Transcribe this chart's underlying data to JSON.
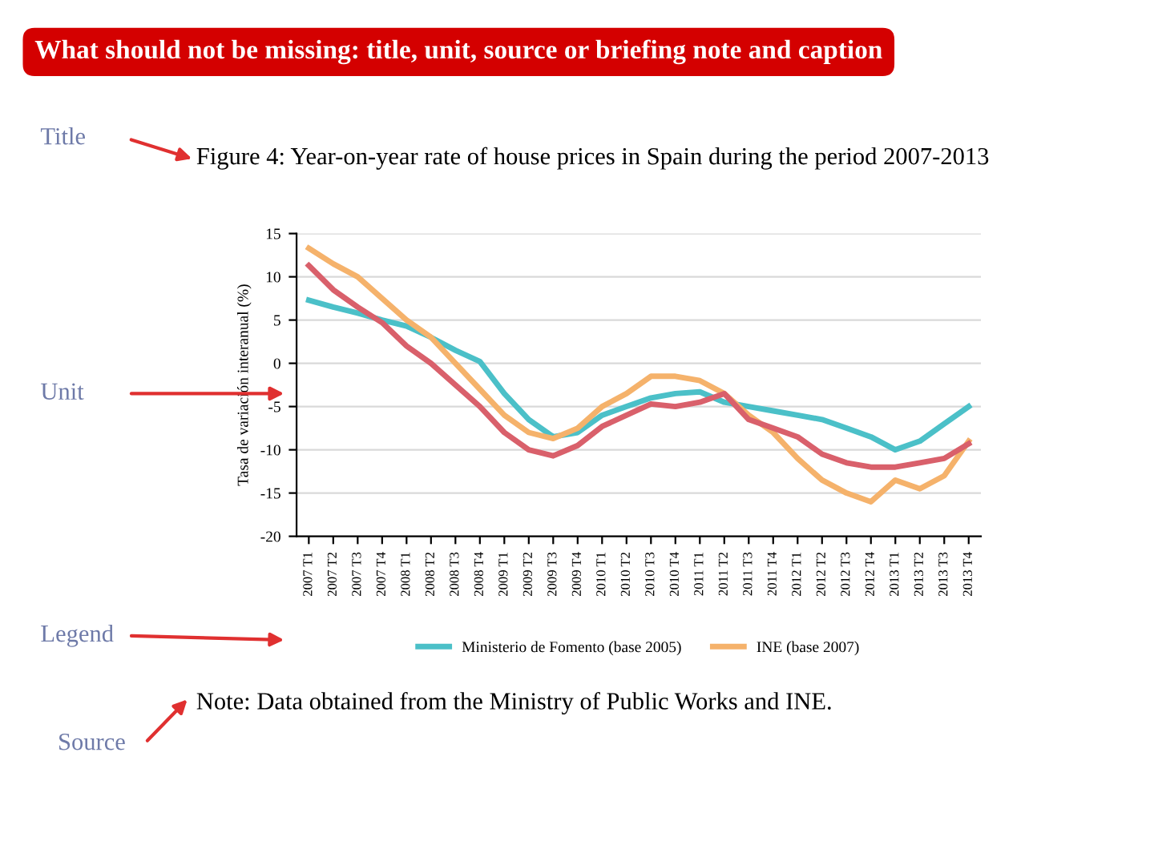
{
  "chart_data": {
    "type": "line",
    "title": "Figure 4: Year-on-year rate of house prices in Spain during the period 2007-2013",
    "ylabel": "Tasa de variación interanual (%)",
    "categories": [
      "2007 T1",
      "2007 T2",
      "2007 T3",
      "2007 T4",
      "2008 T1",
      "2008 T2",
      "2008 T3",
      "2008 T4",
      "2009 T1",
      "2009 T2",
      "2009 T3",
      "2009 T4",
      "2010 T1",
      "2010 T2",
      "2010 T3",
      "2010 T4",
      "2011 T1",
      "2011 T2",
      "2011 T3",
      "2011 T4",
      "2012 T1",
      "2012 T2",
      "2012 T3",
      "2012 T4",
      "2013 T1",
      "2013 T2",
      "2013 T3",
      "2013 T4"
    ],
    "series": [
      {
        "name": "Ministerio de Fomento (base 2005)",
        "color": "#4bc0c8",
        "values": [
          7.3,
          6.5,
          5.8,
          5.0,
          4.3,
          3.0,
          1.5,
          0.2,
          -3.5,
          -6.5,
          -8.5,
          -8.0,
          -6.0,
          -5.0,
          -4.0,
          -3.5,
          -3.3,
          -4.5,
          -5.0,
          -5.5,
          -6.0,
          -6.5,
          -7.5,
          -8.5,
          -10.0,
          -9.0,
          -7.0,
          -5.0
        ]
      },
      {
        "name": "INE (base 2007)",
        "color": "#f5b26b",
        "values": [
          13.3,
          11.5,
          10.0,
          7.5,
          5.0,
          3.0,
          0,
          -3.0,
          -6.0,
          -8.0,
          -8.7,
          -7.5,
          -5.0,
          -3.5,
          -1.5,
          -1.5,
          -2.0,
          -3.5,
          -6.0,
          -8.0,
          -11.0,
          -13.5,
          -15.0,
          -16.0,
          -13.5,
          -14.5,
          -13.0,
          -9.0
        ]
      },
      {
        "color": "#d9606b",
        "values": [
          11.3,
          8.5,
          6.5,
          4.7,
          2.0,
          0,
          -2.5,
          -5.0,
          -8.0,
          -10.0,
          -10.7,
          -9.5,
          -7.3,
          -6.0,
          -4.7,
          -5.0,
          -4.5,
          -3.5,
          -6.5,
          -7.5,
          -8.5,
          -10.5,
          -11.5,
          -12.0,
          -12.0,
          -11.5,
          -11.0,
          -9.3
        ]
      }
    ],
    "ylim": [
      -20,
      15
    ],
    "yticks": [
      -20,
      -15,
      -10,
      -5,
      0,
      5,
      10,
      15
    ],
    "grid": "y",
    "legend": "bottom",
    "marker": "none",
    "line_style": "solid",
    "annotations": [
      "What should not be missing: title, unit, source or briefing note and caption",
      "Title",
      "Unit",
      "Legend",
      "Source",
      "Note: Data obtained from the Ministry of Public Works and INE."
    ]
  }
}
